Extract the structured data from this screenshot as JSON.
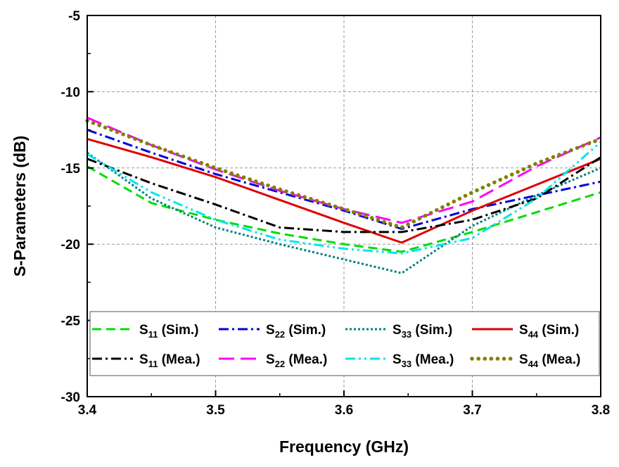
{
  "chart_data": {
    "type": "line",
    "title": "",
    "xlabel": "Frequency (GHz)",
    "ylabel": "S-Parameters (dB)",
    "xlim": [
      3.4,
      3.8
    ],
    "ylim": [
      -30,
      -5
    ],
    "xticks": [
      "3.4",
      "3.5",
      "3.6",
      "3.7",
      "3.8"
    ],
    "yticks": [
      "-5",
      "-10",
      "-15",
      "-20",
      "-25",
      "-30"
    ],
    "grid": true,
    "legend_position": "bottom-inside",
    "series": [
      {
        "name": "S11 (Sim.)",
        "legend": {
          "base": "S",
          "sub": "11",
          "suffix": "(Sim.)"
        },
        "color": "#00dd00",
        "dash": "dash",
        "x": [
          3.4,
          3.45,
          3.5,
          3.55,
          3.6,
          3.645,
          3.7,
          3.75,
          3.8
        ],
        "y": [
          -14.9,
          -17.3,
          -18.4,
          -19.3,
          -20.0,
          -20.5,
          -19.2,
          -17.9,
          -16.6
        ]
      },
      {
        "name": "S22 (Sim.)",
        "legend": {
          "base": "S",
          "sub": "22",
          "suffix": "(Sim.)"
        },
        "color": "#0000dd",
        "dash": "dashdot",
        "x": [
          3.4,
          3.45,
          3.5,
          3.55,
          3.6,
          3.645,
          3.7,
          3.75,
          3.8
        ],
        "y": [
          -12.5,
          -14.0,
          -15.4,
          -16.6,
          -17.8,
          -19.0,
          -17.7,
          -16.8,
          -15.9
        ]
      },
      {
        "name": "S33 (Sim.)",
        "legend": {
          "base": "S",
          "sub": "33",
          "suffix": "(Sim.)"
        },
        "color": "#008080",
        "dash": "dot",
        "x": [
          3.4,
          3.45,
          3.5,
          3.55,
          3.6,
          3.645,
          3.7,
          3.75,
          3.8
        ],
        "y": [
          -14.0,
          -17.0,
          -18.9,
          -20.0,
          -21.0,
          -21.9,
          -18.8,
          -16.8,
          -15.0
        ]
      },
      {
        "name": "S44 (Sim.)",
        "legend": {
          "base": "S",
          "sub": "44",
          "suffix": "(Sim.)"
        },
        "color": "#dd0000",
        "dash": "solid",
        "x": [
          3.4,
          3.45,
          3.5,
          3.55,
          3.6,
          3.645,
          3.7,
          3.75,
          3.8
        ],
        "y": [
          -13.1,
          -14.3,
          -15.6,
          -17.1,
          -18.6,
          -19.9,
          -17.8,
          -16.1,
          -14.4
        ]
      },
      {
        "name": "S11 (Mea.)",
        "legend": {
          "base": "S",
          "sub": "11",
          "suffix": "(Mea.)"
        },
        "color": "#000000",
        "dash": "dashdot",
        "x": [
          3.4,
          3.45,
          3.5,
          3.55,
          3.6,
          3.645,
          3.7,
          3.75,
          3.8
        ],
        "y": [
          -14.4,
          -16.0,
          -17.4,
          -18.9,
          -19.2,
          -19.2,
          -18.4,
          -17.0,
          -14.3
        ]
      },
      {
        "name": "S22 (Mea.)",
        "legend": {
          "base": "S",
          "sub": "22",
          "suffix": "(Mea.)"
        },
        "color": "#ff00ff",
        "dash": "longdash",
        "x": [
          3.4,
          3.45,
          3.5,
          3.55,
          3.6,
          3.645,
          3.7,
          3.75,
          3.8
        ],
        "y": [
          -11.7,
          -13.5,
          -15.1,
          -16.5,
          -17.7,
          -18.6,
          -17.2,
          -14.9,
          -13.0
        ]
      },
      {
        "name": "S33 (Mea.)",
        "legend": {
          "base": "S",
          "sub": "33",
          "suffix": "(Mea.)"
        },
        "color": "#00e5ee",
        "dash": "dashdotdot",
        "x": [
          3.4,
          3.45,
          3.5,
          3.55,
          3.6,
          3.645,
          3.7,
          3.75,
          3.8
        ],
        "y": [
          -14.1,
          -16.6,
          -18.4,
          -19.7,
          -20.3,
          -20.6,
          -19.6,
          -17.0,
          -13.3
        ]
      },
      {
        "name": "S44 (Mea.)",
        "legend": {
          "base": "S",
          "sub": "44",
          "suffix": "(Mea.)"
        },
        "color": "#808000",
        "dash": "roundshortdot",
        "x": [
          3.4,
          3.45,
          3.5,
          3.55,
          3.6,
          3.645,
          3.7,
          3.75,
          3.8
        ],
        "y": [
          -11.9,
          -13.5,
          -15.0,
          -16.4,
          -17.7,
          -18.9,
          -16.6,
          -14.7,
          -13.1
        ]
      }
    ]
  }
}
